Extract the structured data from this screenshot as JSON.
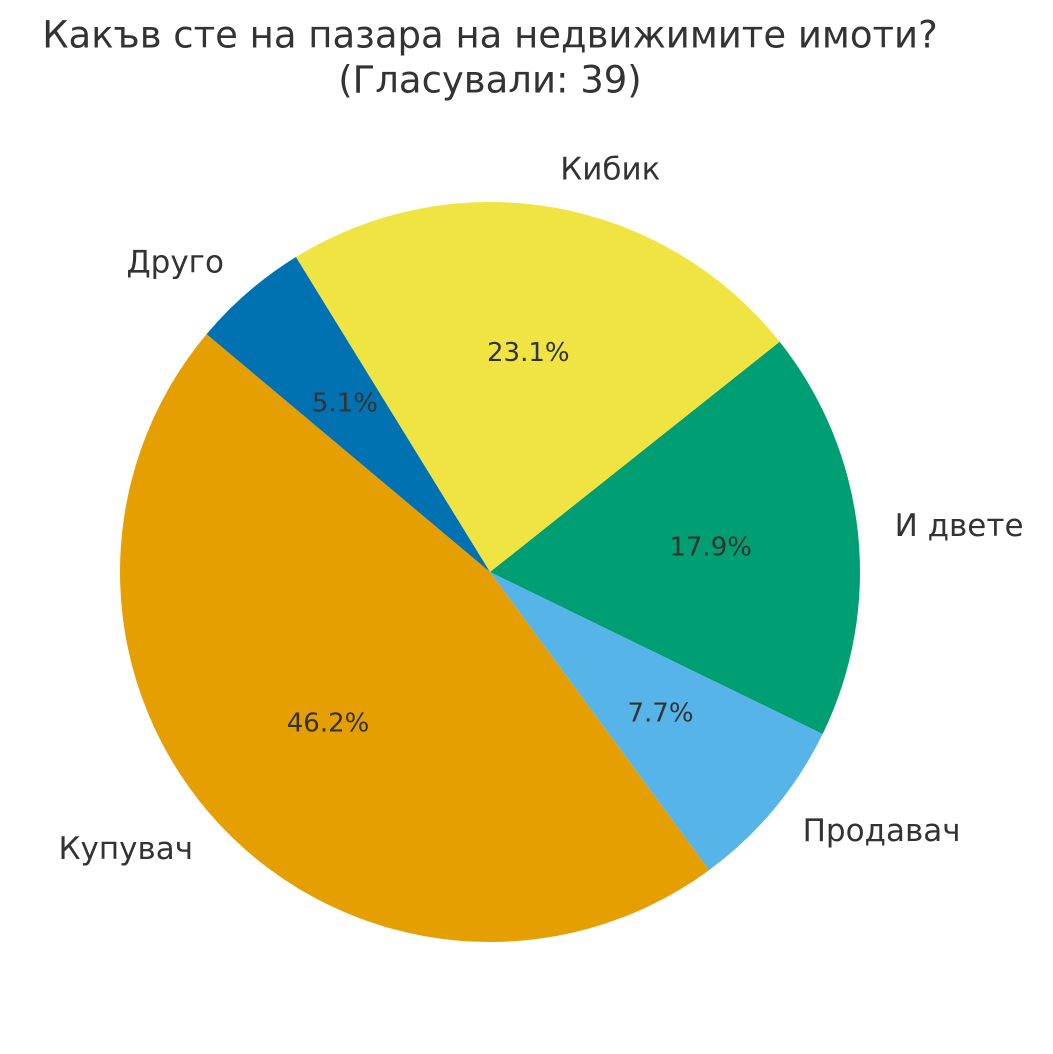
{
  "chart_data": {
    "type": "pie",
    "title": "Какъв сте на пазара на недвижимите имоти?",
    "subtitle": "(Гласували: 39)",
    "categories": [
      "Купувач",
      "Продавач",
      "И двете",
      "Кибик",
      "Друго"
    ],
    "values": [
      46.2,
      7.7,
      17.9,
      23.1,
      5.1
    ],
    "value_labels": [
      "46.2%",
      "7.7%",
      "17.9%",
      "23.1%",
      "5.1%"
    ],
    "colors": [
      "#e69f00",
      "#56b4e9",
      "#009e73",
      "#f0e442",
      "#0072b2"
    ]
  }
}
